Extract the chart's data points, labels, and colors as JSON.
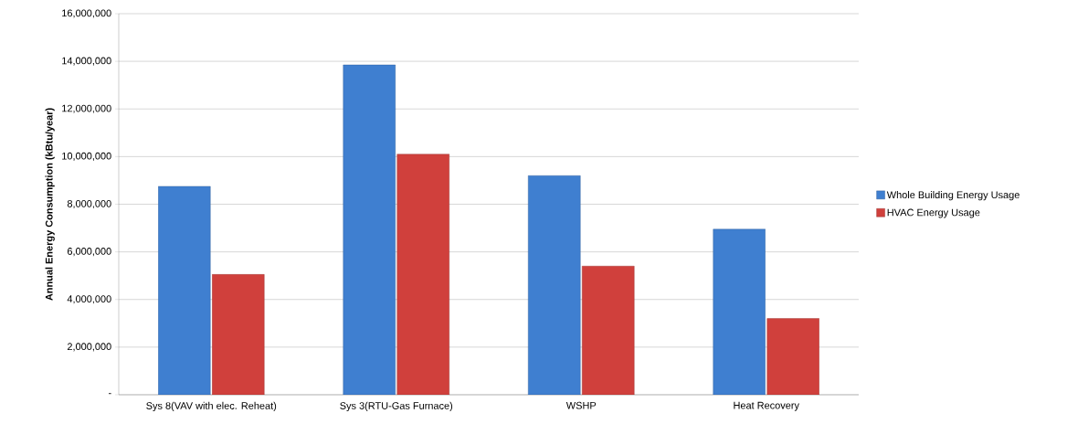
{
  "chart_data": {
    "type": "bar",
    "ylabel": "Annual Energy Consumption (kBtu/year)",
    "categories": [
      "Sys 8(VAV with elec. Reheat)",
      "Sys 3(RTU-Gas  Furnace)",
      "WSHP",
      "Heat Recovery"
    ],
    "series": [
      {
        "name": "Whole Building Energy Usage",
        "color": "#3f7fd0",
        "values": [
          8750000,
          13850000,
          9200000,
          6950000
        ]
      },
      {
        "name": "HVAC Energy Usage",
        "color": "#d0403c",
        "values": [
          5050000,
          10100000,
          5400000,
          3200000
        ]
      }
    ],
    "ylim": [
      0,
      16000000
    ],
    "yticks": [
      {
        "value": 0,
        "label": "-"
      },
      {
        "value": 2000000,
        "label": "2,000,000"
      },
      {
        "value": 4000000,
        "label": "4,000,000"
      },
      {
        "value": 6000000,
        "label": "6,000,000"
      },
      {
        "value": 8000000,
        "label": "8,000,000"
      },
      {
        "value": 10000000,
        "label": "10,000,000"
      },
      {
        "value": 12000000,
        "label": "12,000,000"
      },
      {
        "value": 14000000,
        "label": "14,000,000"
      },
      {
        "value": 16000000,
        "label": "16,000,000"
      }
    ],
    "grid": "y",
    "legend": "right"
  }
}
